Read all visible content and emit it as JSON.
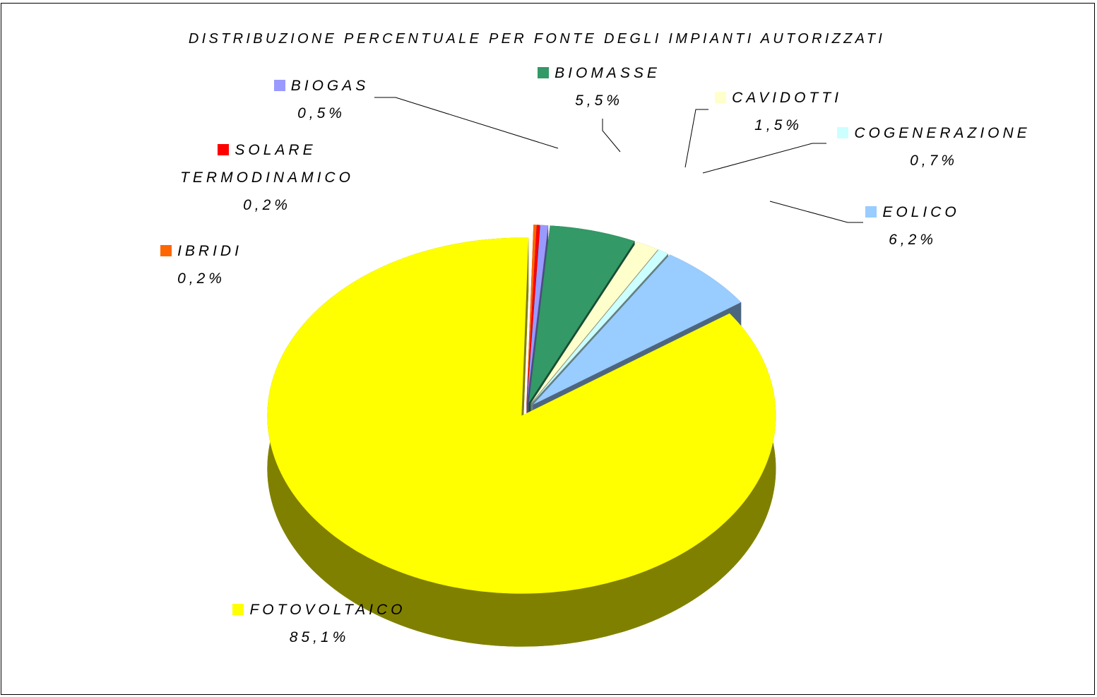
{
  "chart_data": {
    "type": "pie",
    "title": "DISTRIBUZIONE PERCENTUALE PER FONTE DEGLI IMPIANTI AUTORIZZATI",
    "categories": [
      "BIOGAS",
      "BIOMASSE",
      "CAVIDOTTI",
      "COGENERAZIONE",
      "EOLICO",
      "FOTOVOLTAICO",
      "IBRIDI",
      "SOLARE TERMODINAMICO"
    ],
    "values": [
      0.5,
      5.5,
      1.5,
      0.7,
      6.2,
      85.1,
      0.2,
      0.2
    ],
    "value_labels": [
      "0,5%",
      "5,5%",
      "1,5%",
      "0,7%",
      "6,2%",
      "85,1%",
      "0,2%",
      "0,2%"
    ],
    "colors": [
      "#9999ff",
      "#339966",
      "#ffffcc",
      "#ccffff",
      "#99ccff",
      "#ffff00",
      "#ff6600",
      "#ff0000"
    ]
  }
}
